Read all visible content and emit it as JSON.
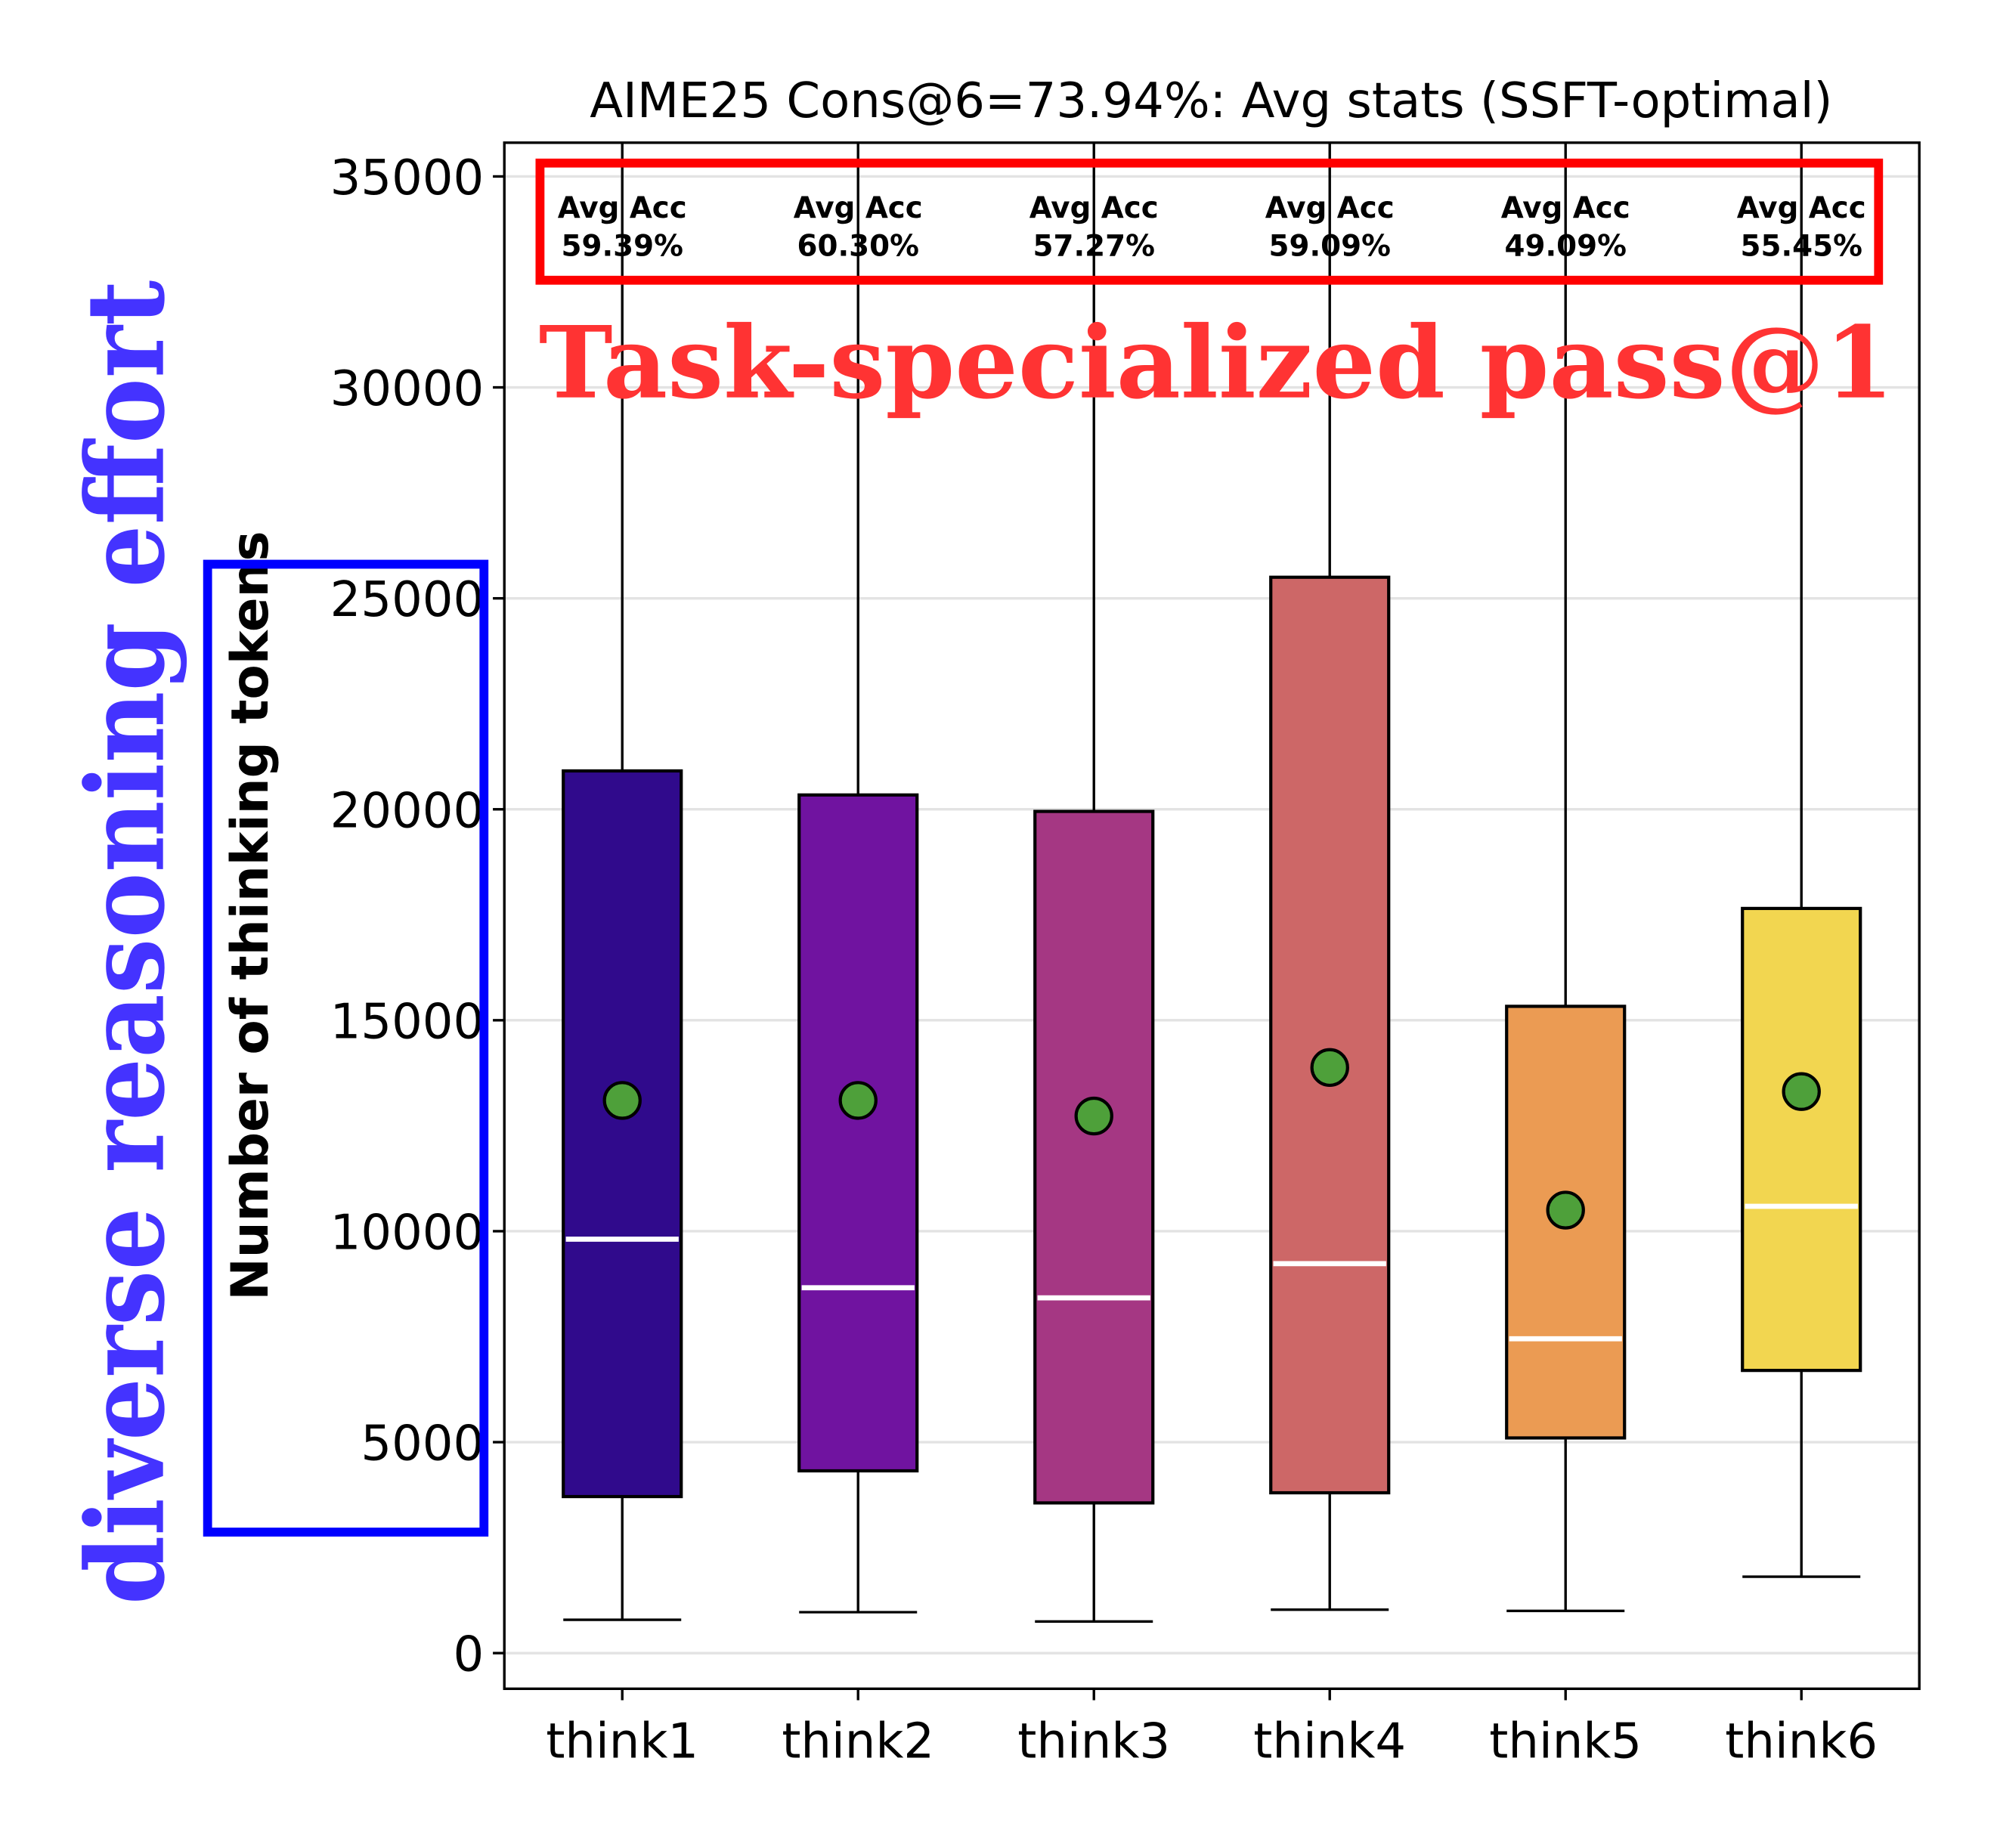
{
  "chart_data": {
    "type": "box",
    "title": "AIME25 Cons@6=73.94%: Avg stats (SSFT-optimal)",
    "xlabel": "",
    "ylabel": "Number of thinking tokens",
    "ylim": [
      -845,
      35800
    ],
    "yticks": [
      0,
      5000,
      10000,
      15000,
      20000,
      25000,
      30000,
      35000
    ],
    "grid": "horizontal",
    "categories": [
      "think1",
      "think2",
      "think3",
      "think4",
      "think5",
      "think6"
    ],
    "boxes": [
      {
        "whisker_low": 790,
        "q1": 3710,
        "median": 9810,
        "q3": 20910,
        "whisker_high": 36000,
        "mean": 13100,
        "color": "#300a8c",
        "label_title": "Avg Acc",
        "label_value": "59.39%"
      },
      {
        "whisker_low": 970,
        "q1": 4320,
        "median": 8660,
        "q3": 20340,
        "whisker_high": 36000,
        "mean": 13100,
        "color": "#7013a0",
        "label_title": "Avg Acc",
        "label_value": "60.30%"
      },
      {
        "whisker_low": 750,
        "q1": 3560,
        "median": 8420,
        "q3": 19950,
        "whisker_high": 36000,
        "mean": 12730,
        "color": "#a53783",
        "label_title": "Avg Acc",
        "label_value": "57.27%"
      },
      {
        "whisker_low": 1030,
        "q1": 3800,
        "median": 9230,
        "q3": 25500,
        "whisker_high": 36000,
        "mean": 13880,
        "color": "#cd6767",
        "label_title": "Avg Acc",
        "label_value": "59.09%"
      },
      {
        "whisker_low": 1000,
        "q1": 5100,
        "median": 7450,
        "q3": 15330,
        "whisker_high": 36000,
        "mean": 10500,
        "color": "#eb9b53",
        "label_title": "Avg Acc",
        "label_value": "49.09%"
      },
      {
        "whisker_low": 1810,
        "q1": 6700,
        "median": 10590,
        "q3": 17650,
        "whisker_high": 36000,
        "mean": 13310,
        "color": "#f2d650",
        "label_title": "Avg Acc",
        "label_value": "55.45%"
      }
    ],
    "mean_marker_color": "#4ea03a",
    "median_color": "#ffffff"
  },
  "annotations": {
    "top_label": "Task-specialized pass@1",
    "top_label_color": "#ff3333",
    "top_box_color": "#ff0000",
    "side_label": "diverse reasoning effort",
    "side_label_color": "#4433ff",
    "side_box_color": "#0000ff"
  }
}
